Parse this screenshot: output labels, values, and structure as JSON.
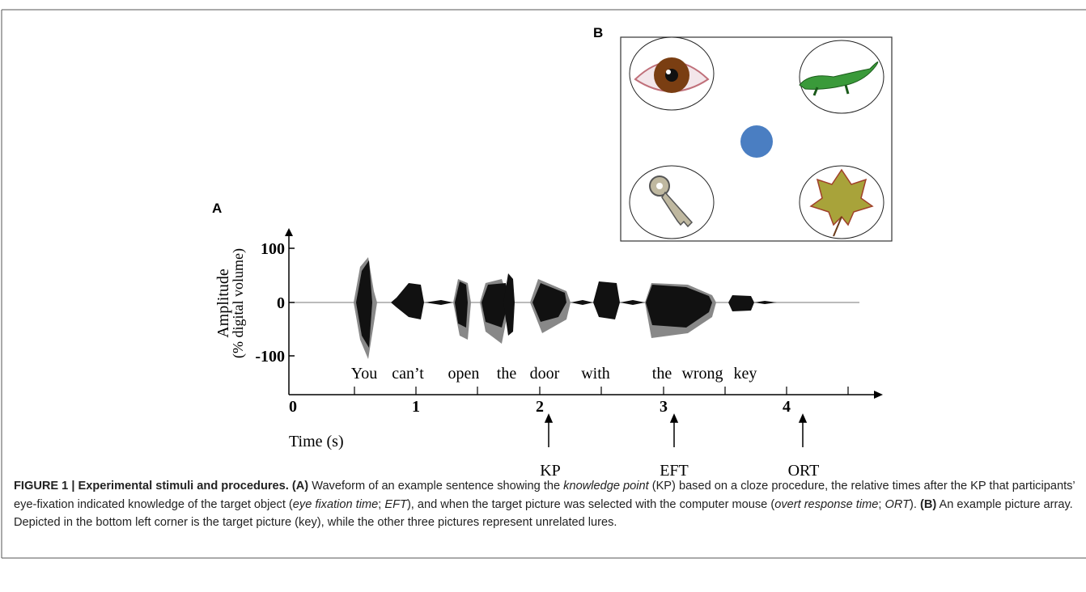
{
  "panel_a": {
    "label": "A",
    "y_axis_title": "Amplitude",
    "y_axis_subtitle": "(% digital volume)",
    "y_ticks": [
      "100",
      "0",
      "-100"
    ],
    "x_ticks": [
      "0",
      "1",
      "2",
      "3",
      "4"
    ],
    "x_axis_title": "Time (s)",
    "words": [
      "You",
      "can’t",
      "open",
      "the",
      "door",
      "with",
      "the",
      "wrong",
      "key"
    ],
    "markers": [
      "KP",
      "EFT",
      "ORT"
    ]
  },
  "panel_b": {
    "label": "B"
  },
  "caption": {
    "runs": [
      "FIGURE 1 | Experimental stimuli and procedures.",
      " (A)",
      " Waveform of an example sentence showing the ",
      "knowledge point",
      " (KP) based on a cloze procedure, the relative times after the KP that participants’ eye-fixation indicated knowledge of the target object (",
      "eye fixation time",
      "; ",
      "EFT",
      "), and when the target picture was selected with the computer mouse (",
      "overt response time",
      "; ",
      "ORT",
      "). ",
      "(B)",
      " An example picture array. Depicted in the bottom left corner is the target picture (key), while the other three pictures represent unrelated lures."
    ]
  }
}
